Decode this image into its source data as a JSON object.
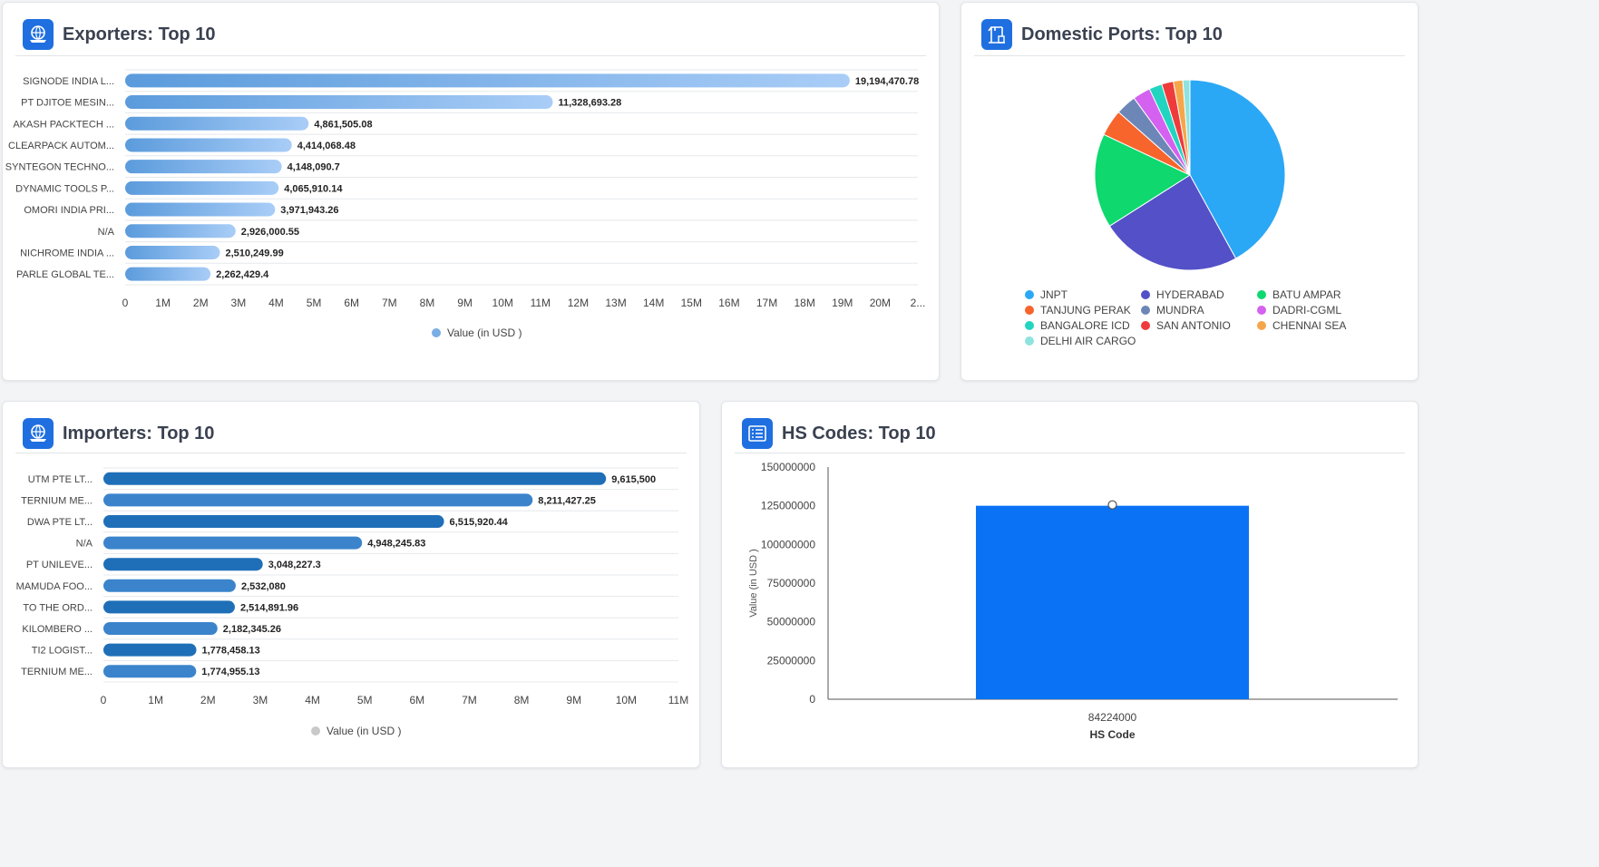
{
  "exporters": {
    "title": "Exporters: Top 10",
    "legend_label": "Value (in USD )",
    "chart_data": {
      "type": "bar",
      "orientation": "horizontal",
      "categories": [
        "SIGNODE INDIA L...",
        "PT DJITOE MESIN...",
        "AKASH PACKTECH ...",
        "CLEARPACK AUTOM...",
        "SYNTEGON TECHNO...",
        "DYNAMIC TOOLS P...",
        "OMORI INDIA PRI...",
        "N/A",
        "NICHROME INDIA ...",
        "PARLE GLOBAL TE..."
      ],
      "values": [
        19194470.78,
        11328693.28,
        4861505.08,
        4414068.48,
        4148090.7,
        4065910.14,
        3971943.26,
        2926000.55,
        2510249.99,
        2262429.4
      ],
      "value_labels": [
        "19,194,470.78",
        "11,328,693.28",
        "4,861,505.08",
        "4,414,068.48",
        "4,148,090.7",
        "4,065,910.14",
        "3,971,943.26",
        "2,926,000.55",
        "2,510,249.99",
        "2,262,429.4"
      ],
      "xticks": [
        "0",
        "1M",
        "2M",
        "3M",
        "4M",
        "5M",
        "6M",
        "7M",
        "8M",
        "9M",
        "10M",
        "11M",
        "12M",
        "13M",
        "14M",
        "15M",
        "16M",
        "17M",
        "18M",
        "19M",
        "20M",
        "2..."
      ],
      "xlim": [
        0,
        21000000
      ],
      "series_name": "Value (in USD )",
      "colors": {
        "bar_start": "#5b9bdc",
        "bar_end": "#a9cdf7"
      }
    }
  },
  "ports": {
    "title": "Domestic Ports: Top 10",
    "chart_data": {
      "type": "pie",
      "labels": [
        "JNPT",
        "HYDERABAD",
        "BATU AMPAR",
        "TANJUNG PERAK",
        "MUNDRA",
        "DADRI-CGML",
        "BANGALORE ICD",
        "SAN ANTONIO",
        "CHENNAI SEA",
        "DELHI AIR CARGO"
      ],
      "values": [
        42,
        24,
        16,
        4.5,
        3.5,
        3,
        2.2,
        2,
        1.6,
        1.2
      ],
      "colors": [
        "#2ba8f5",
        "#5350c8",
        "#0ed86e",
        "#f7642c",
        "#6d86b8",
        "#d461ef",
        "#22d5c0",
        "#ef3b3b",
        "#f6a64a",
        "#8fe3df"
      ],
      "legend_placement": "bottom"
    }
  },
  "importers": {
    "title": "Importers: Top 10",
    "legend_label": "Value (in USD )",
    "chart_data": {
      "type": "bar",
      "orientation": "horizontal",
      "categories": [
        "UTM PTE LT...",
        "TERNIUM ME...",
        "DWA PTE LT...",
        "N/A",
        "PT UNILEVE...",
        "MAMUDA FOO...",
        "TO THE ORD...",
        "KILOMBERO ...",
        "TI2 LOGIST...",
        "TERNIUM ME..."
      ],
      "values": [
        9615500,
        8211427.25,
        6515920.44,
        4948245.83,
        3048227.3,
        2532080,
        2514891.96,
        2182345.26,
        1778458.13,
        1774955.13
      ],
      "value_labels": [
        "9,615,500",
        "8,211,427.25",
        "6,515,920.44",
        "4,948,245.83",
        "3,048,227.3",
        "2,532,080",
        "2,514,891.96",
        "2,182,345.26",
        "1,778,458.13",
        "1,774,955.13"
      ],
      "xticks": [
        "0",
        "1M",
        "2M",
        "3M",
        "4M",
        "5M",
        "6M",
        "7M",
        "8M",
        "9M",
        "10M",
        "11M"
      ],
      "xlim": [
        0,
        11000000
      ],
      "series_name": "Value (in USD )",
      "colors": {
        "bar_dark": "#1f6fb8",
        "bar_light": "#3b84cc"
      }
    }
  },
  "hscodes": {
    "title": "HS Codes: Top 10",
    "chart_data": {
      "type": "bar",
      "categories": [
        "84224000"
      ],
      "values": [
        125000000
      ],
      "ylabel": "Value (in USD )",
      "xlabel": "HS Code",
      "yticks": [
        "150000000",
        "125000000",
        "100000000",
        "75000000",
        "50000000",
        "25000000",
        "0"
      ],
      "ylim": [
        0,
        150000000
      ],
      "colors": {
        "bar": "#0a73f5"
      }
    }
  }
}
